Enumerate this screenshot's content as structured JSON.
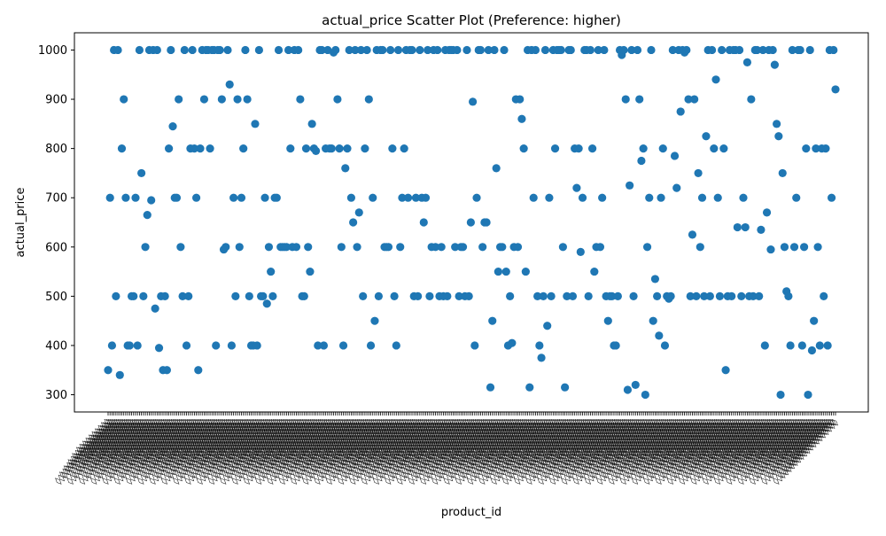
{
  "chart_data": {
    "type": "scatter",
    "title": "actual_price Scatter Plot (Preference: higher)",
    "xlabel": "product_id",
    "ylabel": "actual_price",
    "ylim": [
      265,
      1035
    ],
    "yticks": [
      300,
      400,
      500,
      600,
      700,
      800,
      900,
      1000
    ],
    "grid": false,
    "x_tick_label_glyph": "◊",
    "colors": {
      "marker": "#1f77b4"
    },
    "series": [
      {
        "values": [
          350,
          700,
          400,
          1000,
          500,
          1000,
          340,
          800,
          900,
          700,
          400,
          400,
          500,
          500,
          700,
          400,
          1000,
          750,
          500,
          600,
          665,
          1000,
          695,
          1000,
          475,
          1000,
          395,
          500,
          350,
          500,
          350,
          800,
          1000,
          845,
          700,
          700,
          900,
          600,
          500,
          1000,
          400,
          500,
          800,
          1000,
          800,
          700,
          350,
          800,
          1000,
          900,
          1000,
          1000,
          800,
          1000,
          1000,
          400,
          1000,
          1000,
          900,
          595,
          600,
          1000,
          930,
          400,
          700,
          500,
          900,
          600,
          700,
          800,
          1000,
          900,
          500,
          400,
          400,
          850,
          400,
          1000,
          500,
          500,
          700,
          485,
          600,
          550,
          500,
          700,
          700,
          1000,
          600,
          600,
          600,
          600,
          1000,
          800,
          600,
          1000,
          600,
          1000,
          900,
          500,
          500,
          800,
          600,
          550,
          850,
          800,
          795,
          400,
          1000,
          1000,
          400,
          800,
          1000,
          800,
          800,
          995,
          1000,
          900,
          800,
          600,
          400,
          760,
          800,
          1000,
          700,
          650,
          1000,
          600,
          670,
          1000,
          500,
          800,
          1000,
          900,
          400,
          700,
          450,
          1000,
          500,
          1000,
          1000,
          600,
          600,
          600,
          1000,
          800,
          500,
          400,
          1000,
          600,
          700,
          800,
          1000,
          700,
          1000,
          1000,
          500,
          700,
          500,
          1000,
          700,
          650,
          700,
          1000,
          500,
          600,
          1000,
          600,
          1000,
          500,
          600,
          500,
          1000,
          500,
          1000,
          1000,
          1000,
          600,
          1000,
          500,
          600,
          600,
          500,
          1000,
          500,
          650,
          895,
          400,
          700,
          1000,
          1000,
          600,
          650,
          650,
          1000,
          315,
          450,
          1000,
          760,
          550,
          600,
          600,
          1000,
          550,
          400,
          500,
          405,
          600,
          900,
          600,
          900,
          860,
          800,
          550,
          1000,
          315,
          1000,
          700,
          1000,
          500,
          400,
          375,
          500,
          1000,
          440,
          700,
          500,
          1000,
          800,
          1000,
          1000,
          1000,
          600,
          315,
          500,
          1000,
          1000,
          500,
          800,
          720,
          800,
          590,
          700,
          1000,
          1000,
          500,
          1000,
          800,
          550,
          600,
          1000,
          600,
          700,
          1000,
          500,
          450,
          500,
          500,
          400,
          400,
          500,
          1000,
          990,
          1000,
          900,
          310,
          725,
          1000,
          500,
          320,
          1000,
          900,
          775,
          800,
          300,
          600,
          700,
          1000,
          450,
          535,
          500,
          420,
          700,
          800,
          400,
          500,
          495,
          500,
          1000,
          785,
          720,
          1000,
          875,
          1000,
          995,
          1000,
          900,
          500,
          625,
          900,
          500,
          750,
          600,
          700,
          500,
          825,
          1000,
          500,
          1000,
          800,
          940,
          700,
          500,
          1000,
          800,
          350,
          500,
          1000,
          500,
          1000,
          1000,
          640,
          1000,
          500,
          700,
          640,
          975,
          500,
          900,
          500,
          1000,
          1000,
          500,
          635,
          1000,
          400,
          670,
          1000,
          595,
          1000,
          970,
          850,
          825,
          300,
          750,
          600,
          510,
          500,
          400,
          1000,
          600,
          700,
          1000,
          1000,
          400,
          600,
          800,
          300,
          1000,
          390,
          450,
          800,
          600,
          400,
          800,
          500,
          800,
          400,
          1000,
          700,
          1000,
          920
        ]
      }
    ]
  }
}
